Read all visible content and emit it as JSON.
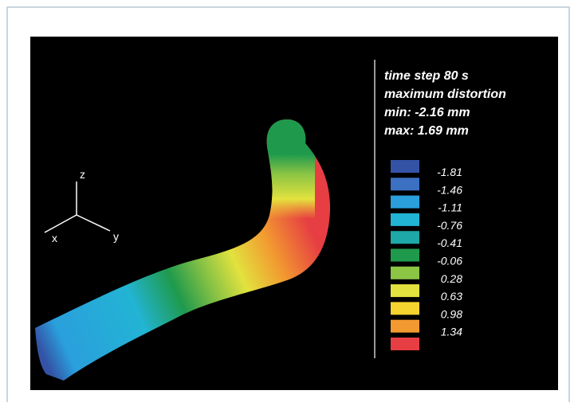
{
  "header": {
    "lines": [
      "time step 80 s",
      "maximum distortion",
      "min: -2.16 mm",
      "max: 1.69 mm"
    ]
  },
  "axes": {
    "z": "z",
    "x": "x",
    "y": "y"
  },
  "legend": {
    "items": [
      {
        "label": "-1.81",
        "color": "#3453a6"
      },
      {
        "label": "-1.46",
        "color": "#3b70c2"
      },
      {
        "label": "-1.11",
        "color": "#2a9fdc"
      },
      {
        "label": "-0.76",
        "color": "#22b4d4"
      },
      {
        "label": "-0.41",
        "color": "#1ea8a8"
      },
      {
        "label": "-0.06",
        "color": "#1f9a4c"
      },
      {
        "label": "0.28",
        "color": "#8cc444"
      },
      {
        "label": "0.63",
        "color": "#e2e23e"
      },
      {
        "label": "0.98",
        "color": "#f6d430"
      },
      {
        "label": "1.34",
        "color": "#f29a30"
      },
      {
        "label": "",
        "color": "#e63e42"
      }
    ]
  }
}
